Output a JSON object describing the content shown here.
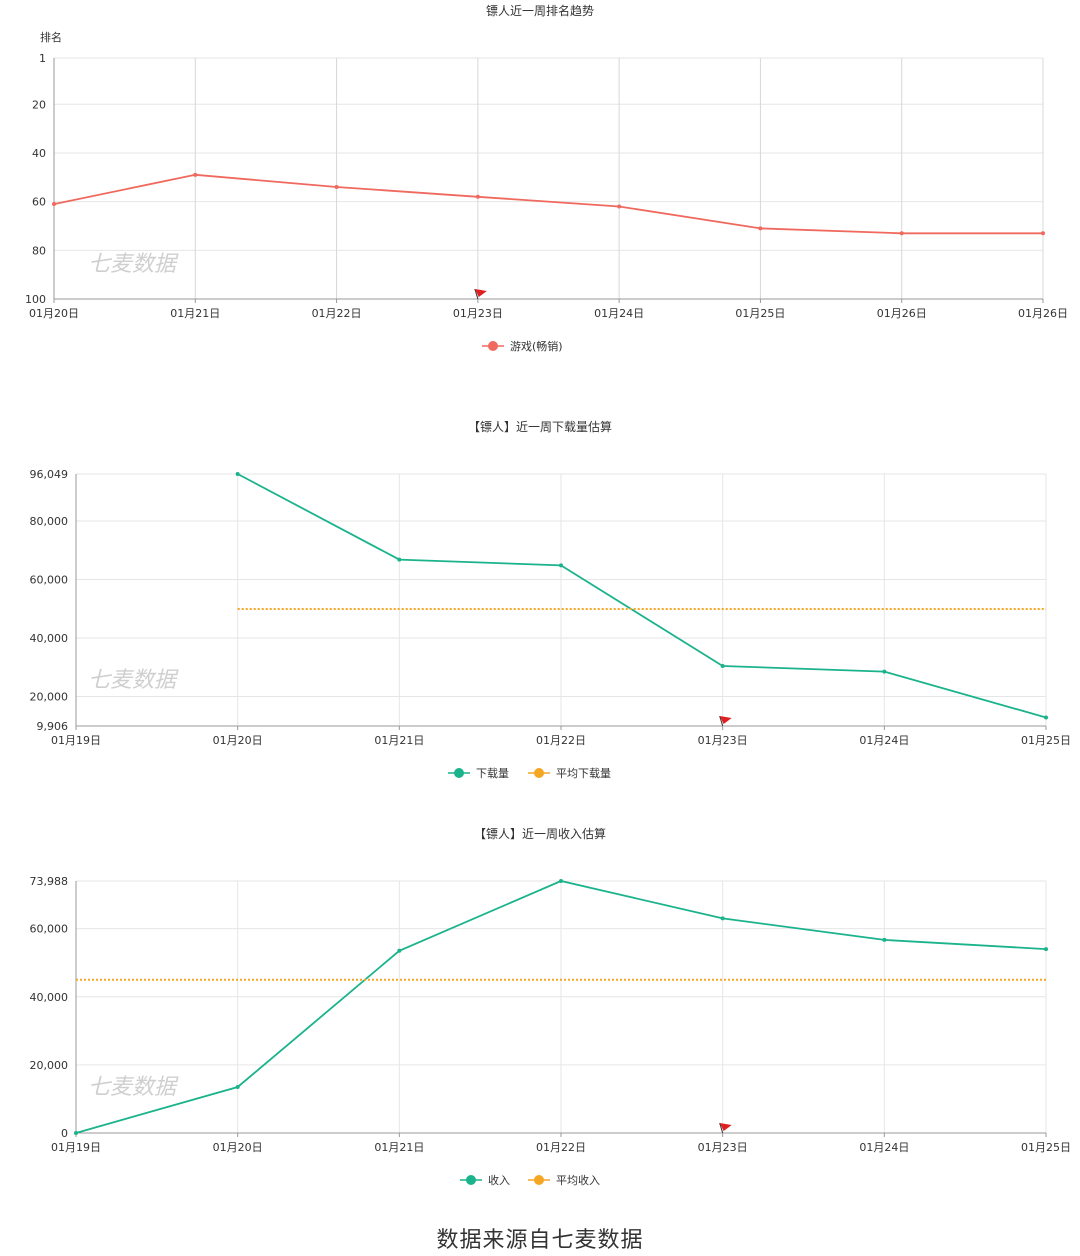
{
  "footer": "数据来源自七麦数据",
  "watermark": "七麦数据",
  "chart_data": [
    {
      "type": "line",
      "title": "镖人近一周排名趋势",
      "ylabel": "排名",
      "y_reversed": true,
      "ylim": [
        1,
        100
      ],
      "y_ticks": [
        "1",
        "20",
        "40",
        "60",
        "80",
        "100"
      ],
      "categories": [
        "01月20日",
        "01月21日",
        "01月22日",
        "01月23日",
        "01月24日",
        "01月25日",
        "01月26日",
        "01月26日"
      ],
      "series": [
        {
          "name": "游戏(畅销)",
          "color": "#f0695e",
          "values": [
            61,
            49,
            54,
            58,
            62,
            71,
            73,
            73
          ]
        }
      ],
      "flag_at": "01月23日",
      "grid": true,
      "legend": "bottom-center"
    },
    {
      "type": "line",
      "title": "【镖人】近一周下载量估算",
      "ylim": [
        9906,
        96049
      ],
      "y_ticks": [
        "9,906",
        "20,000",
        "40,000",
        "60,000",
        "80,000",
        "96,049"
      ],
      "categories": [
        "01月19日",
        "01月20日",
        "01月21日",
        "01月22日",
        "01月23日",
        "01月24日",
        "01月25日"
      ],
      "series": [
        {
          "name": "下载量",
          "color": "#1bb38c",
          "values": [
            null,
            96049,
            66800,
            64800,
            30400,
            28500,
            12800
          ]
        },
        {
          "name": "平均下载量",
          "color": "#f5a623",
          "dashed": true,
          "values": [
            null,
            49900,
            49900,
            49900,
            49900,
            49900,
            49900
          ]
        }
      ],
      "flag_at": "01月23日",
      "grid": true,
      "legend": "bottom-center"
    },
    {
      "type": "line",
      "title": "【镖人】近一周收入估算",
      "ylim": [
        0,
        73988
      ],
      "y_ticks": [
        "0",
        "20,000",
        "40,000",
        "60,000",
        "73,988"
      ],
      "categories": [
        "01月19日",
        "01月20日",
        "01月21日",
        "01月22日",
        "01月23日",
        "01月24日",
        "01月25日"
      ],
      "series": [
        {
          "name": "收入",
          "color": "#1bb38c",
          "values": [
            0,
            13500,
            53500,
            73988,
            63000,
            56700,
            54000
          ]
        },
        {
          "name": "平均收入",
          "color": "#f5a623",
          "dashed": true,
          "values": [
            45000,
            45000,
            45000,
            45000,
            45000,
            45000,
            45000
          ]
        }
      ],
      "flag_at": "01月23日",
      "grid": true,
      "legend": "bottom-center"
    }
  ]
}
